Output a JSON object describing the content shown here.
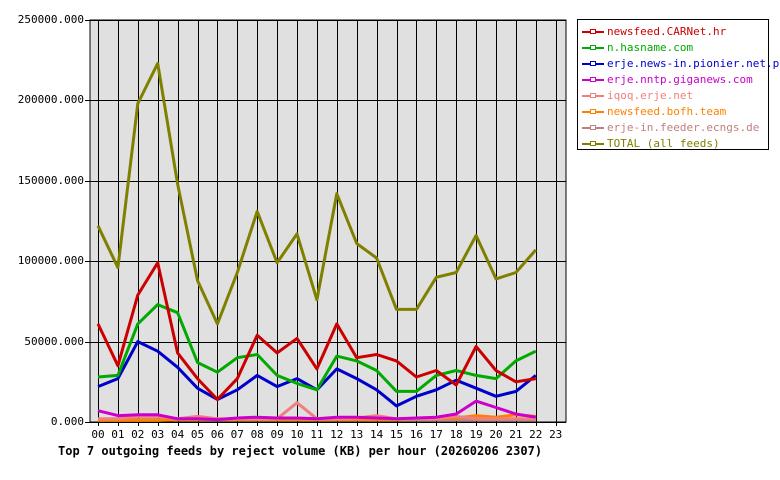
{
  "chart_data": {
    "type": "line",
    "title": "Top 7 outgoing feeds by reject volume (KB) per hour (20260206 2307)",
    "xlabel": "",
    "ylabel": "",
    "ylim": [
      0,
      250000
    ],
    "grid": true,
    "legend_position": "right",
    "y_ticks": [
      "0.000",
      "50000.000",
      "100000.000",
      "150000.000",
      "200000.000",
      "250000.000"
    ],
    "categories": [
      "00",
      "01",
      "02",
      "03",
      "04",
      "05",
      "06",
      "07",
      "08",
      "09",
      "10",
      "11",
      "12",
      "13",
      "14",
      "15",
      "16",
      "17",
      "18",
      "19",
      "20",
      "21",
      "22",
      "23"
    ],
    "series": [
      {
        "name": "newsfeed.CARNet.hr",
        "color": "#cc0000",
        "values": [
          61000,
          35000,
          79000,
          99000,
          43000,
          27000,
          14000,
          27000,
          54000,
          43000,
          52000,
          33000,
          61000,
          40000,
          42000,
          38000,
          28000,
          32000,
          23000,
          47000,
          32000,
          25000,
          27000
        ]
      },
      {
        "name": "n.hasname.com",
        "color": "#00aa00",
        "values": [
          28000,
          29000,
          61000,
          73000,
          68000,
          37000,
          31000,
          40000,
          42000,
          29000,
          24000,
          20000,
          41000,
          38000,
          32000,
          19000,
          19000,
          29000,
          32000,
          29000,
          27000,
          38000,
          44000
        ]
      },
      {
        "name": "erje.news-in.pionier.net.pl",
        "color": "#0000cc",
        "values": [
          22000,
          27000,
          50000,
          44000,
          34000,
          21000,
          14000,
          20000,
          29000,
          22000,
          27000,
          20000,
          33000,
          27000,
          20000,
          10000,
          16000,
          20000,
          26000,
          21000,
          16000,
          19000,
          29000
        ]
      },
      {
        "name": "erje.nntp.giganews.com",
        "color": "#cc00cc",
        "values": [
          7000,
          4000,
          4500,
          4500,
          2000,
          2000,
          1500,
          2500,
          3000,
          2500,
          2500,
          2000,
          3000,
          3000,
          2500,
          2000,
          2500,
          3000,
          5000,
          13000,
          9000,
          5000,
          3000
        ]
      },
      {
        "name": "iqoq.erje.net",
        "color": "#f08080",
        "values": [
          2000,
          2000,
          3500,
          3500,
          2000,
          3500,
          2000,
          2000,
          2000,
          2000,
          12000,
          2000,
          2000,
          2500,
          4000,
          2000,
          2000,
          2000,
          3500,
          2000,
          2000,
          2000,
          2000
        ]
      },
      {
        "name": "newsfeed.bofh.team",
        "color": "#ff8000",
        "values": [
          1000,
          1000,
          1000,
          1000,
          1500,
          1500,
          1500,
          1500,
          1500,
          1500,
          1500,
          1500,
          1500,
          1500,
          1500,
          1500,
          2000,
          2000,
          2500,
          4000,
          3000,
          4500,
          3500
        ]
      },
      {
        "name": "erje-in.feeder.ecngs.de",
        "color": "#c08080",
        "values": [
          1500,
          1500,
          1500,
          1500,
          1500,
          1500,
          1500,
          1500,
          1500,
          1500,
          1500,
          1500,
          1500,
          1500,
          1500,
          1500,
          1500,
          1500,
          1500,
          1500,
          1500,
          1500,
          1500
        ]
      },
      {
        "name": "TOTAL (all feeds)",
        "color": "#808000",
        "values": [
          122000,
          96000,
          198000,
          223000,
          148000,
          88000,
          61000,
          93000,
          131000,
          99000,
          117000,
          76000,
          142000,
          111000,
          102000,
          70000,
          70000,
          90000,
          93000,
          116000,
          89000,
          93000,
          107000
        ]
      }
    ]
  },
  "caption": "Top 7 outgoing feeds by reject volume (KB) per hour (20260206 2307)",
  "legend": {
    "items": [
      {
        "label": "newsfeed.CARNet.hr",
        "color": "#cc0000"
      },
      {
        "label": "n.hasname.com",
        "color": "#00aa00"
      },
      {
        "label": "erje.news-in.pionier.net.pl",
        "color": "#0000cc"
      },
      {
        "label": "erje.nntp.giganews.com",
        "color": "#cc00cc"
      },
      {
        "label": "iqoq.erje.net",
        "color": "#f08080"
      },
      {
        "label": "newsfeed.bofh.team",
        "color": "#ff8000"
      },
      {
        "label": "erje-in.feeder.ecngs.de",
        "color": "#c08080"
      },
      {
        "label": "TOTAL (all feeds)",
        "color": "#808000"
      }
    ]
  }
}
